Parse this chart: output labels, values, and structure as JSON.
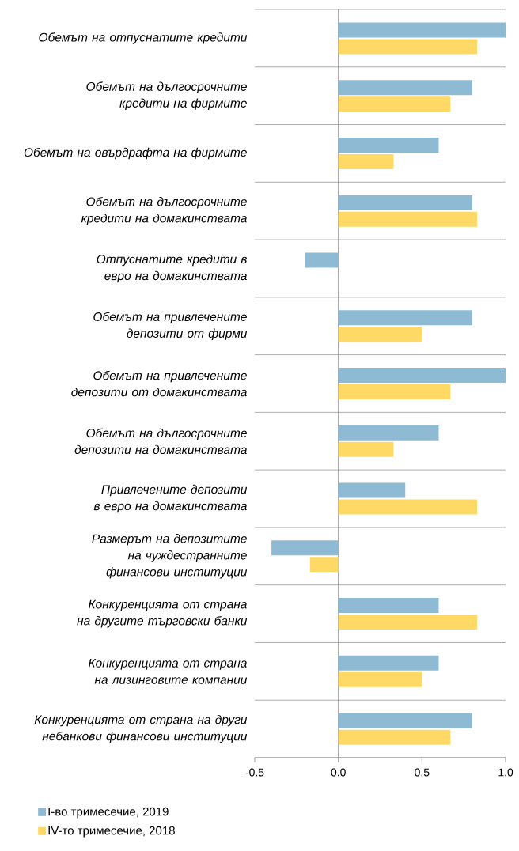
{
  "chart_data": {
    "type": "bar",
    "orientation": "horizontal",
    "categories": [
      "Обемът на отпуснатите кредити",
      "Обемът на дългосрочните кредити на фирмите",
      "Обемът на овърдрафта на фирмите",
      "Обемът на дългосрочните кредити на домакинствата",
      "Отпуснатите кредити в евро на домакинствата",
      "Обемът на привлечените депозити от фирми",
      "Обемът на привлечените депозити от домакинствата",
      "Обемът на дългосрочните депозити на домакинствата",
      "Привлечените депозити в евро на домакинствата",
      "Размерът на депозитите на чуждестранните финансови институции",
      "Конкуренцията от страна на другите търговски банки",
      "Конкуренцията от страна на лизинговите компании",
      "Конкуренцията от страна на други небанкови финансови институции"
    ],
    "series": [
      {
        "name": "I-во тримесечие, 2019",
        "color": "#8fbad4",
        "values": [
          1.0,
          0.8,
          0.6,
          0.8,
          -0.2,
          0.8,
          1.0,
          0.6,
          0.4,
          -0.4,
          0.6,
          0.6,
          0.8
        ]
      },
      {
        "name": "IV-то тримесечие, 2018",
        "color": "#ffd966",
        "values": [
          0.83,
          0.67,
          0.33,
          0.83,
          0,
          0.5,
          0.67,
          0.33,
          0.83,
          -0.17,
          0.83,
          0.5,
          0.67
        ]
      }
    ],
    "xlim": [
      -0.5,
      1.0
    ],
    "xticks": [
      {
        "value": -0.5,
        "label": "-0.5"
      },
      {
        "value": 0,
        "label": "0.0"
      },
      {
        "value": 0.5,
        "label": "0.5"
      },
      {
        "value": 1.0,
        "label": "1.0"
      }
    ],
    "grid": "y",
    "legend": "bottom left"
  }
}
